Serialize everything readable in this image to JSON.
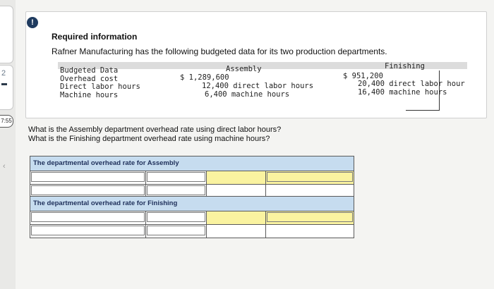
{
  "sidebar": {
    "number": "2",
    "timer": "7:55",
    "chevron": "‹"
  },
  "alert_icon": "!",
  "header": {
    "title": "Required information",
    "intro": "Rafner Manufacturing has the following budgeted data for its two production departments."
  },
  "budget_table": {
    "header_label": "Budgeted Data",
    "col_assembly": "Assembly",
    "col_finishing": "Finishing",
    "rows": [
      {
        "label": "Overhead cost",
        "assembly": "$ 1,289,600",
        "finishing": "$ 951,200"
      },
      {
        "label": "Direct labor hours",
        "assembly": "12,400 direct labor hours",
        "finishing": "20,400 direct labor hour"
      },
      {
        "label": "Machine hours",
        "assembly": "6,400 machine hours",
        "finishing": "16,400 machine hours"
      }
    ]
  },
  "questions": [
    "What is the Assembly department overhead rate using direct labor hours?",
    "What is the Finishing department overhead rate using machine hours?"
  ],
  "answers": {
    "assembly_header": "The departmental overhead rate for Assembly",
    "finishing_header": "The departmental overhead rate for Finishing"
  },
  "colors": {
    "header_blue": "#c6dcef",
    "input_yellow": "#faf3a0",
    "alert_navy": "#1f3b5f"
  }
}
